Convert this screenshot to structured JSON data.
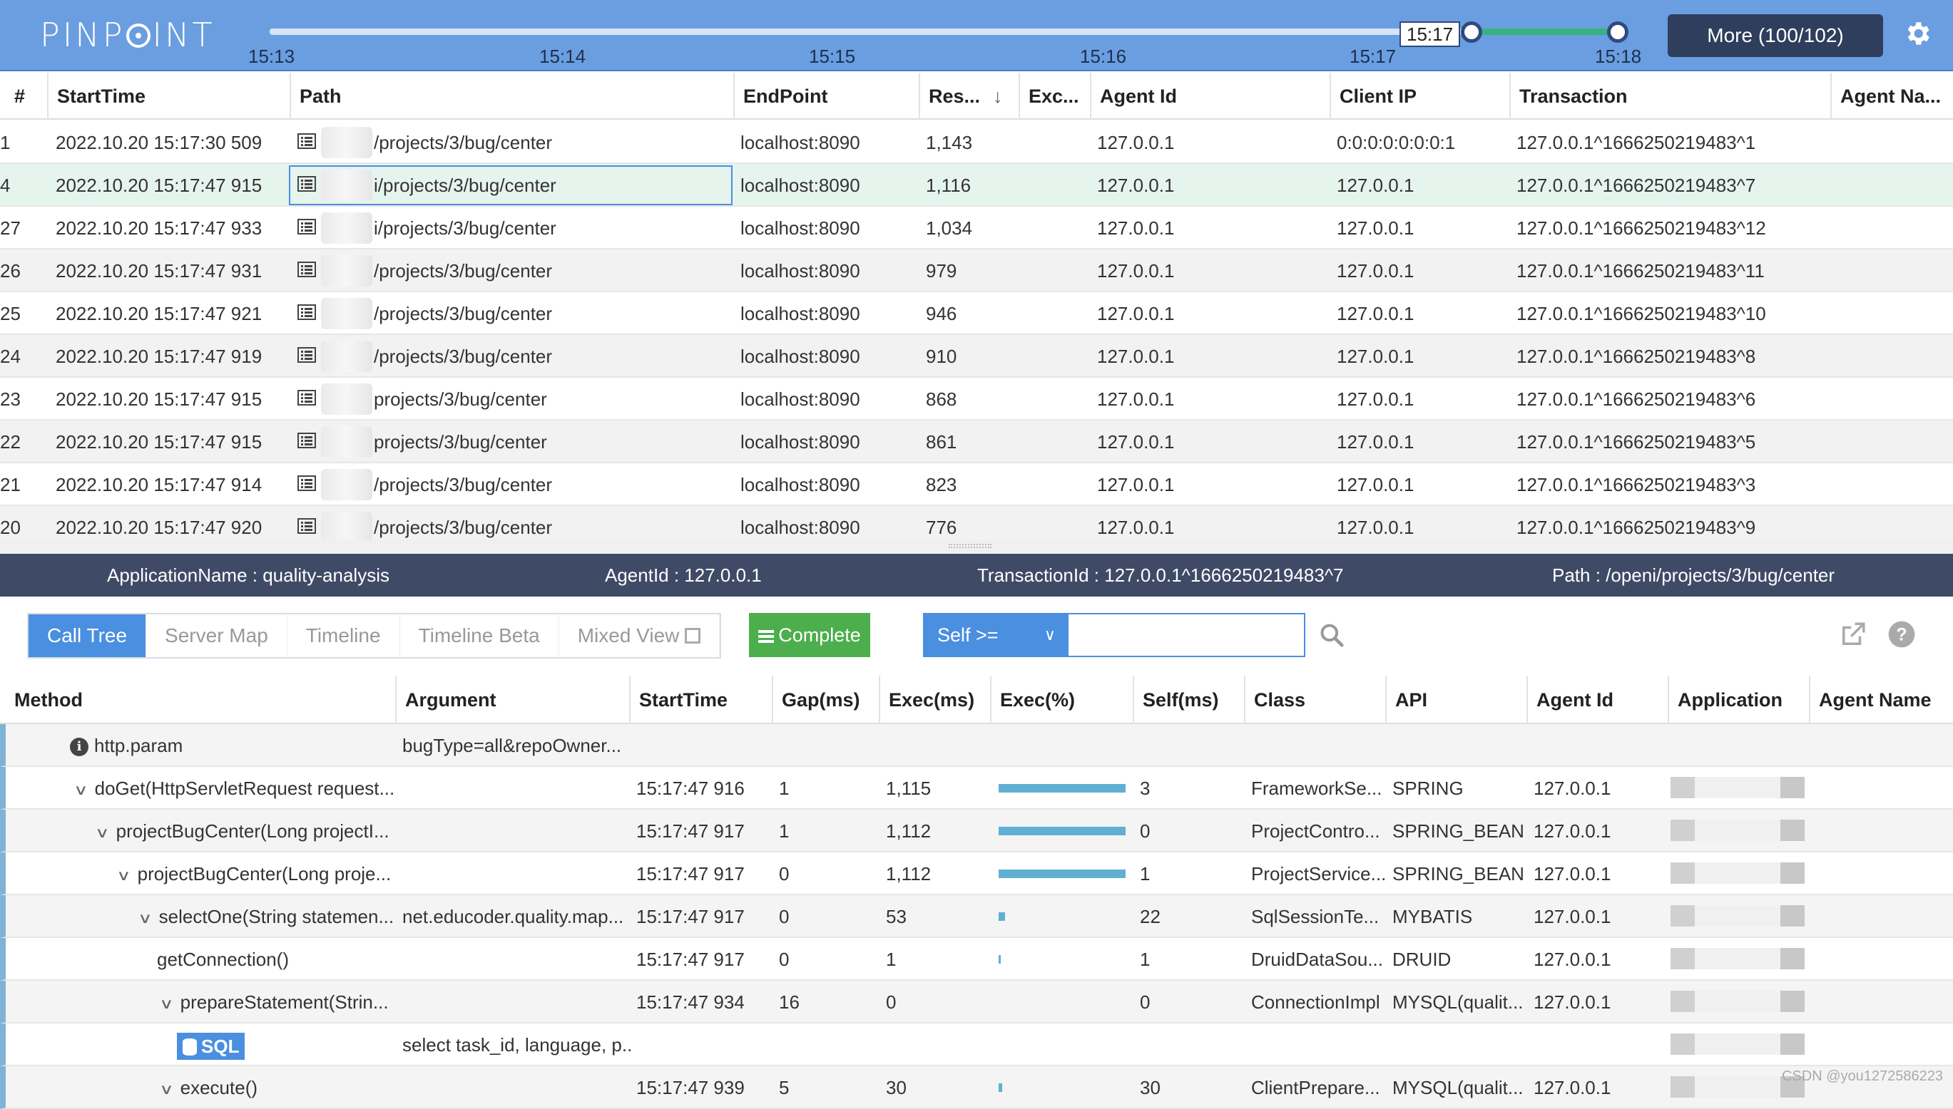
{
  "header": {
    "logo": "PINPOINT",
    "ticks": [
      "15:13",
      "15:14",
      "15:15",
      "15:16",
      "15:17",
      "15:18"
    ],
    "handle_label": "15:17",
    "more_button": "More (100/102)",
    "icons": {
      "settings": "gear-icon"
    },
    "colors": {
      "topbar": "#6a9ee0",
      "range": "#36b37e"
    }
  },
  "list": {
    "columns": [
      "#",
      "StartTime",
      "Path",
      "EndPoint",
      "Res...",
      "Exc...",
      "Agent Id",
      "Client IP",
      "Transaction",
      "Agent Na..."
    ],
    "sort_indicator": "↓",
    "rows": [
      {
        "num": "1",
        "start": "2022.10.20 15:17:30 509",
        "path": "/projects/3/bug/center",
        "endpoint": "localhost:8090",
        "res": "1,143",
        "agent": "127.0.0.1",
        "client": "0:0:0:0:0:0:0:1",
        "tx": "127.0.0.1^1666250219483^1"
      },
      {
        "num": "4",
        "start": "2022.10.20 15:17:47 915",
        "path": "i/projects/3/bug/center",
        "endpoint": "localhost:8090",
        "res": "1,116",
        "agent": "127.0.0.1",
        "client": "127.0.0.1",
        "tx": "127.0.0.1^1666250219483^7"
      },
      {
        "num": "27",
        "start": "2022.10.20 15:17:47 933",
        "path": "i/projects/3/bug/center",
        "endpoint": "localhost:8090",
        "res": "1,034",
        "agent": "127.0.0.1",
        "client": "127.0.0.1",
        "tx": "127.0.0.1^1666250219483^12"
      },
      {
        "num": "26",
        "start": "2022.10.20 15:17:47 931",
        "path": "/projects/3/bug/center",
        "endpoint": "localhost:8090",
        "res": "979",
        "agent": "127.0.0.1",
        "client": "127.0.0.1",
        "tx": "127.0.0.1^1666250219483^11"
      },
      {
        "num": "25",
        "start": "2022.10.20 15:17:47 921",
        "path": "/projects/3/bug/center",
        "endpoint": "localhost:8090",
        "res": "946",
        "agent": "127.0.0.1",
        "client": "127.0.0.1",
        "tx": "127.0.0.1^1666250219483^10"
      },
      {
        "num": "24",
        "start": "2022.10.20 15:17:47 919",
        "path": "/projects/3/bug/center",
        "endpoint": "localhost:8090",
        "res": "910",
        "agent": "127.0.0.1",
        "client": "127.0.0.1",
        "tx": "127.0.0.1^1666250219483^8"
      },
      {
        "num": "23",
        "start": "2022.10.20 15:17:47 915",
        "path": "projects/3/bug/center",
        "endpoint": "localhost:8090",
        "res": "868",
        "agent": "127.0.0.1",
        "client": "127.0.0.1",
        "tx": "127.0.0.1^1666250219483^6"
      },
      {
        "num": "22",
        "start": "2022.10.20 15:17:47 915",
        "path": "projects/3/bug/center",
        "endpoint": "localhost:8090",
        "res": "861",
        "agent": "127.0.0.1",
        "client": "127.0.0.1",
        "tx": "127.0.0.1^1666250219483^5"
      },
      {
        "num": "21",
        "start": "2022.10.20 15:17:47 914",
        "path": "/projects/3/bug/center",
        "endpoint": "localhost:8090",
        "res": "823",
        "agent": "127.0.0.1",
        "client": "127.0.0.1",
        "tx": "127.0.0.1^1666250219483^3"
      },
      {
        "num": "20",
        "start": "2022.10.20 15:17:47 920",
        "path": "/projects/3/bug/center",
        "endpoint": "localhost:8090",
        "res": "776",
        "agent": "127.0.0.1",
        "client": "127.0.0.1",
        "tx": "127.0.0.1^1666250219483^9"
      }
    ]
  },
  "info": {
    "app": "ApplicationName : quality-analysis",
    "agent": "AgentId : 127.0.0.1",
    "tx": "TransactionId : 127.0.0.1^1666250219483^7",
    "path": "Path : /openi/projects/3/bug/center"
  },
  "toolbar": {
    "tabs": [
      "Call Tree",
      "Server Map",
      "Timeline",
      "Timeline Beta",
      "Mixed View"
    ],
    "complete": "Complete",
    "filter_select": "Self >=",
    "filter_value": "",
    "icons": {
      "search": "search-icon",
      "open": "open-external-icon",
      "help": "help-icon"
    }
  },
  "calltree": {
    "columns": [
      "Method",
      "Argument",
      "StartTime",
      "Gap(ms)",
      "Exec(ms)",
      "Exec(%)",
      "Self(ms)",
      "Class",
      "API",
      "Agent Id",
      "Application",
      "Agent Name"
    ],
    "rows": [
      {
        "method": "http.param",
        "arg": "bugType=all&repoOwner...",
        "start": "",
        "gap": "",
        "exec": "",
        "pct": 0,
        "self": "",
        "cls": "",
        "api": "",
        "agent": ""
      },
      {
        "method": "doGet(HttpServletRequest request...",
        "arg": "",
        "start": "15:17:47 916",
        "gap": "1",
        "exec": "1,115",
        "pct": 100,
        "self": "3",
        "cls": "FrameworkSe...",
        "api": "SPRING",
        "agent": "127.0.0.1"
      },
      {
        "method": "projectBugCenter(Long projectI...",
        "arg": "",
        "start": "15:17:47 917",
        "gap": "1",
        "exec": "1,112",
        "pct": 100,
        "self": "0",
        "cls": "ProjectContro...",
        "api": "SPRING_BEAN",
        "agent": "127.0.0.1"
      },
      {
        "method": "projectBugCenter(Long proje...",
        "arg": "",
        "start": "15:17:47 917",
        "gap": "0",
        "exec": "1,112",
        "pct": 100,
        "self": "1",
        "cls": "ProjectService...",
        "api": "SPRING_BEAN",
        "agent": "127.0.0.1"
      },
      {
        "method": "selectOne(String statemen...",
        "arg": "net.educoder.quality.map...",
        "start": "15:17:47 917",
        "gap": "0",
        "exec": "53",
        "pct": 5,
        "self": "22",
        "cls": "SqlSessionTe...",
        "api": "MYBATIS",
        "agent": "127.0.0.1"
      },
      {
        "method": "getConnection()",
        "arg": "",
        "start": "15:17:47 917",
        "gap": "0",
        "exec": "1",
        "pct": 1,
        "self": "1",
        "cls": "DruidDataSou...",
        "api": "DRUID",
        "agent": "127.0.0.1"
      },
      {
        "method": "prepareStatement(Strin...",
        "arg": "",
        "start": "15:17:47 934",
        "gap": "16",
        "exec": "0",
        "pct": 0,
        "self": "0",
        "cls": "ConnectionImpl",
        "api": "MYSQL(qualit...",
        "agent": "127.0.0.1"
      },
      {
        "method": "SQL",
        "arg": "select task_id, language, p...",
        "start": "",
        "gap": "",
        "exec": "",
        "pct": 0,
        "self": "",
        "cls": "",
        "api": "",
        "agent": ""
      },
      {
        "method": "execute()",
        "arg": "",
        "start": "15:17:47 939",
        "gap": "5",
        "exec": "30",
        "pct": 3,
        "self": "30",
        "cls": "ClientPrepare...",
        "api": "MYSQL(qualit...",
        "agent": "127.0.0.1"
      }
    ]
  },
  "watermark": "CSDN @you1272586223"
}
